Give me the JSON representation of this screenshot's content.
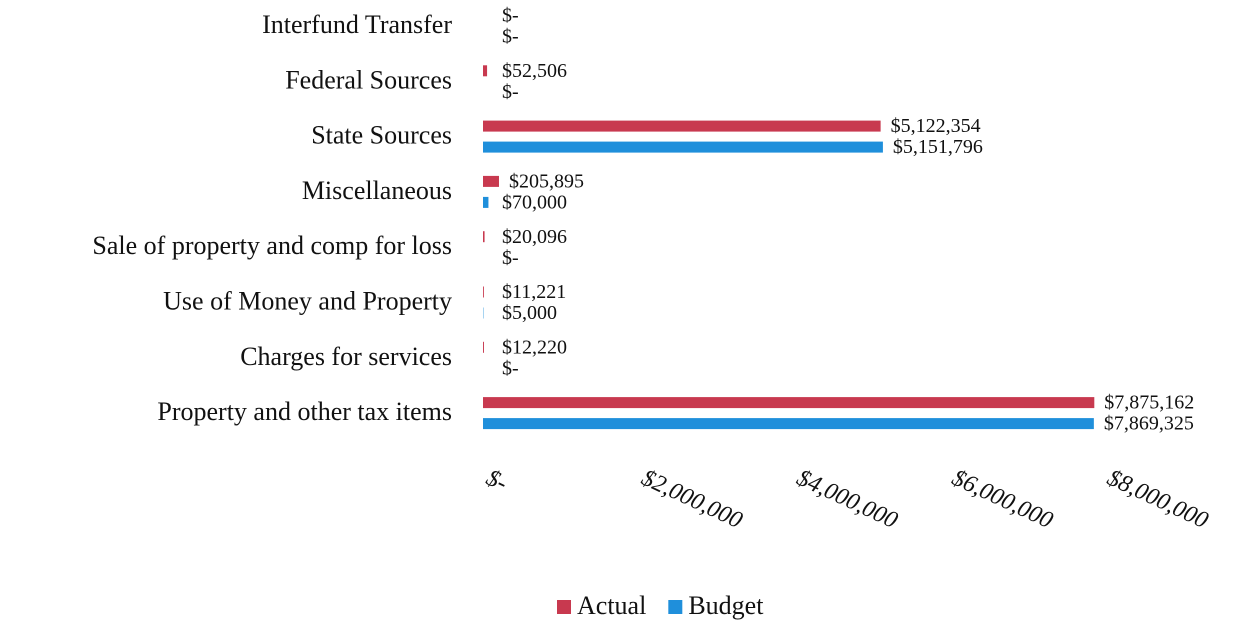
{
  "chart_data": {
    "type": "bar",
    "orientation": "horizontal",
    "categories": [
      "Interfund Transfer",
      "Federal Sources",
      "State Sources",
      "Miscellaneous",
      "Sale of property and comp for loss",
      "Use of Money and Property",
      "Charges for services",
      "Property and other tax items"
    ],
    "series": [
      {
        "name": "Actual",
        "color": "#c8394f",
        "values": [
          0,
          52506,
          5122354,
          205895,
          20096,
          11221,
          12220,
          7875162
        ],
        "value_labels": [
          "$-",
          "$52,506",
          "$5,122,354",
          "$205,895",
          "$20,096",
          "$11,221",
          "$12,220",
          "$7,875,162"
        ]
      },
      {
        "name": "Budget",
        "color": "#1f8fdb",
        "values": [
          0,
          0,
          5151796,
          70000,
          0,
          5000,
          0,
          7869325
        ],
        "value_labels": [
          "$-",
          "$-",
          "$5,151,796",
          "$70,000",
          "$-",
          "$5,000",
          "$-",
          "$7,869,325"
        ]
      }
    ],
    "xlim": [
      0,
      8000000
    ],
    "xticks": [
      {
        "value": 0,
        "label": "$-"
      },
      {
        "value": 2000000,
        "label": "$2,000,000"
      },
      {
        "value": 4000000,
        "label": "$4,000,000"
      },
      {
        "value": 6000000,
        "label": "$6,000,000"
      },
      {
        "value": 8000000,
        "label": "$8,000,000"
      }
    ],
    "legend": "bottom"
  }
}
